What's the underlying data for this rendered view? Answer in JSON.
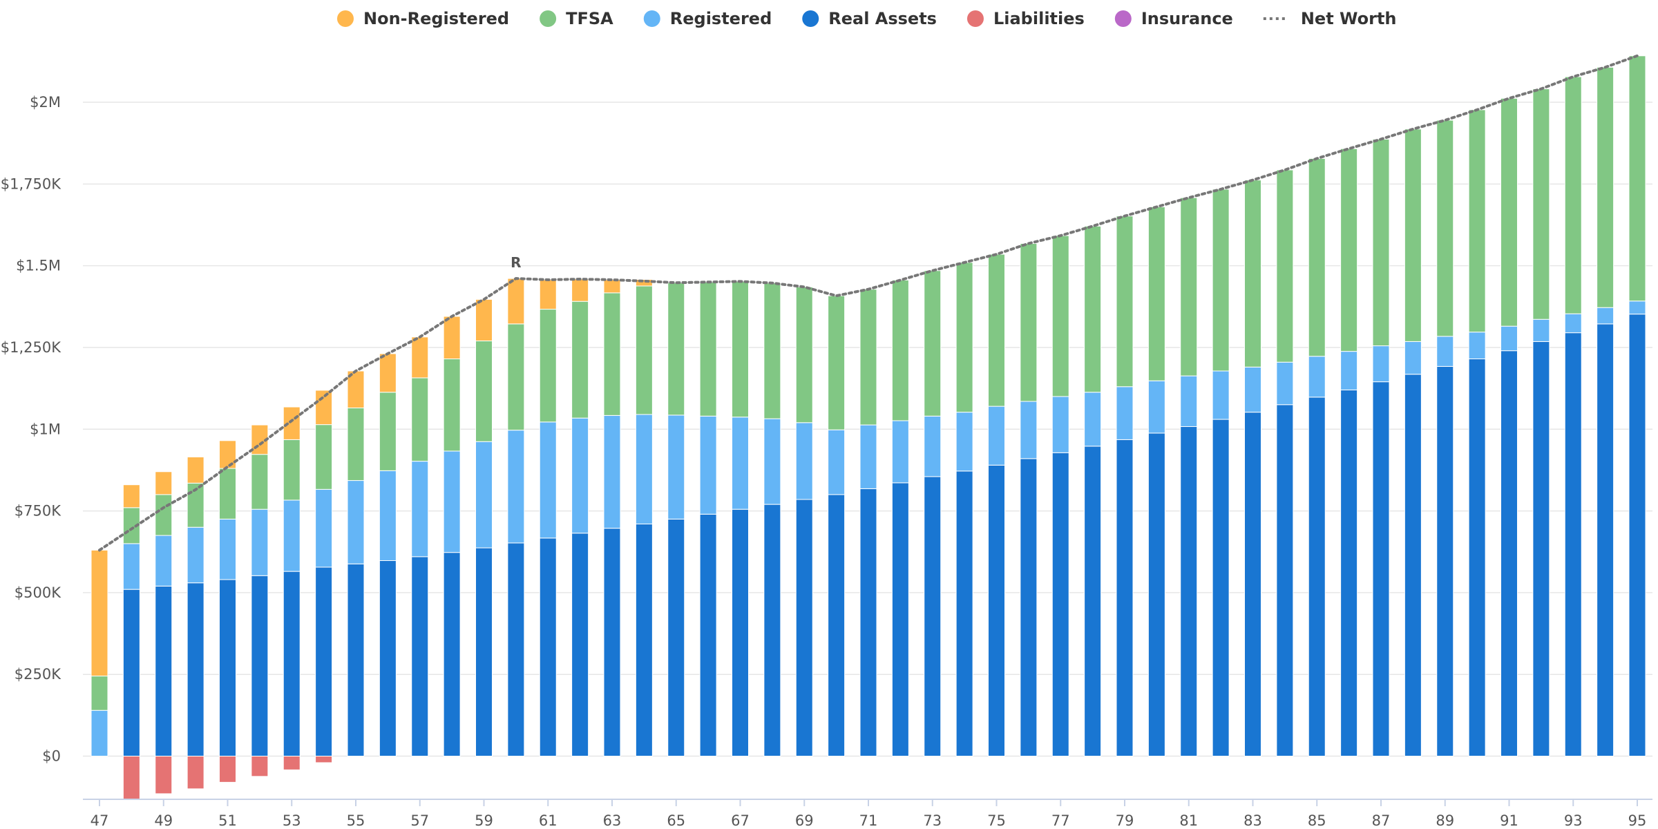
{
  "chart_data": {
    "type": "bar",
    "stacked": true,
    "title": "",
    "xlabel": "",
    "ylabel": "",
    "ylim": [
      -140000,
      2140000
    ],
    "grid": true,
    "legend_position": "top-center",
    "y_ticks": [
      {
        "value": 0,
        "label": "$0"
      },
      {
        "value": 250000,
        "label": "$250K"
      },
      {
        "value": 500000,
        "label": "$500K"
      },
      {
        "value": 750000,
        "label": "$750K"
      },
      {
        "value": 1000000,
        "label": "$1M"
      },
      {
        "value": 1250000,
        "label": "$1,250K"
      },
      {
        "value": 1500000,
        "label": "$1.5M"
      },
      {
        "value": 1750000,
        "label": "$1,750K"
      },
      {
        "value": 2000000,
        "label": "$2M"
      }
    ],
    "x_tick_labels": [
      "47",
      "49",
      "51",
      "53",
      "55",
      "57",
      "59",
      "61",
      "63",
      "65",
      "67",
      "69",
      "71",
      "73",
      "75",
      "77",
      "79",
      "81",
      "83",
      "85",
      "87",
      "89",
      "91",
      "93",
      "95"
    ],
    "categories": [
      "47",
      "48",
      "49",
      "50",
      "51",
      "52",
      "53",
      "54",
      "55",
      "56",
      "57",
      "58",
      "59",
      "60",
      "61",
      "62",
      "63",
      "64",
      "65",
      "66",
      "67",
      "68",
      "69",
      "70",
      "71",
      "72",
      "73",
      "74",
      "75",
      "76",
      "77",
      "78",
      "79",
      "80",
      "81",
      "82",
      "83",
      "84",
      "85",
      "86",
      "87",
      "88",
      "89",
      "90",
      "91",
      "92",
      "93",
      "94",
      "95"
    ],
    "series": [
      {
        "name": "Real Assets",
        "color": "#1976d2",
        "values": [
          0,
          510000,
          520000,
          530000,
          540000,
          552000,
          565000,
          578000,
          588000,
          598000,
          610000,
          623000,
          637000,
          652000,
          667000,
          682000,
          697000,
          710000,
          725000,
          740000,
          755000,
          770000,
          785000,
          800000,
          818000,
          836000,
          855000,
          872000,
          890000,
          910000,
          928000,
          948000,
          968000,
          988000,
          1008000,
          1030000,
          1052000,
          1075000,
          1098000,
          1120000,
          1145000,
          1168000,
          1192000,
          1215000,
          1240000,
          1268000,
          1295000,
          1322000,
          1352000
        ]
      },
      {
        "name": "Registered",
        "color": "#64b5f6",
        "values": [
          140000,
          140000,
          155000,
          170000,
          185000,
          203000,
          218000,
          238000,
          255000,
          275000,
          292000,
          310000,
          325000,
          345000,
          355000,
          352000,
          345000,
          335000,
          318000,
          300000,
          282000,
          262000,
          235000,
          198000,
          195000,
          190000,
          185000,
          180000,
          180000,
          175000,
          172000,
          165000,
          162000,
          160000,
          155000,
          148000,
          138000,
          130000,
          125000,
          118000,
          110000,
          100000,
          92000,
          82000,
          75000,
          68000,
          58000,
          50000,
          40000
        ]
      },
      {
        "name": "TFSA",
        "color": "#81c784",
        "values": [
          105000,
          110000,
          125000,
          135000,
          155000,
          168000,
          185000,
          198000,
          222000,
          240000,
          255000,
          282000,
          308000,
          325000,
          345000,
          357000,
          375000,
          393000,
          405000,
          410000,
          415000,
          415000,
          415000,
          410000,
          415000,
          430000,
          445000,
          458000,
          465000,
          483000,
          492000,
          508000,
          522000,
          532000,
          545000,
          556000,
          572000,
          588000,
          605000,
          620000,
          632000,
          650000,
          661000,
          680000,
          697000,
          705000,
          725000,
          735000,
          750000
        ]
      },
      {
        "name": "Non-Registered",
        "color": "#ffb74d",
        "values": [
          385000,
          70000,
          70000,
          80000,
          85000,
          90000,
          100000,
          105000,
          113000,
          118000,
          125000,
          130000,
          127000,
          139000,
          90000,
          68000,
          40000,
          20000,
          0,
          0,
          0,
          0,
          0,
          0,
          0,
          0,
          0,
          0,
          0,
          0,
          0,
          0,
          0,
          0,
          0,
          0,
          0,
          0,
          0,
          0,
          0,
          0,
          0,
          0,
          0,
          0,
          0,
          0,
          0
        ]
      },
      {
        "name": "Liabilities",
        "color": "#e57373",
        "values": [
          0,
          -135000,
          -115000,
          -100000,
          -80000,
          -62000,
          -42000,
          -20000,
          0,
          0,
          0,
          0,
          0,
          0,
          0,
          0,
          0,
          0,
          0,
          0,
          0,
          0,
          0,
          0,
          0,
          0,
          0,
          0,
          0,
          0,
          0,
          0,
          0,
          0,
          0,
          0,
          0,
          0,
          0,
          0,
          0,
          0,
          0,
          0,
          0,
          0,
          0,
          0,
          0
        ]
      },
      {
        "name": "Insurance",
        "color": "#ba68c8",
        "values": [
          0,
          0,
          0,
          0,
          0,
          0,
          0,
          0,
          0,
          0,
          0,
          0,
          0,
          0,
          0,
          0,
          0,
          0,
          0,
          0,
          0,
          0,
          0,
          0,
          0,
          0,
          0,
          0,
          0,
          0,
          0,
          0,
          0,
          0,
          0,
          0,
          0,
          0,
          0,
          0,
          0,
          0,
          0,
          0,
          0,
          0,
          0,
          0,
          0
        ]
      }
    ],
    "line_series": {
      "name": "Net Worth",
      "color": "#777777",
      "style": "dotted",
      "values": [
        630000,
        695000,
        760000,
        815000,
        885000,
        953000,
        1026000,
        1099000,
        1178000,
        1231000,
        1282000,
        1345000,
        1397000,
        1461000,
        1457000,
        1459000,
        1457000,
        1453000,
        1448000,
        1450000,
        1452000,
        1447000,
        1435000,
        1408000,
        1428000,
        1456000,
        1485000,
        1510000,
        1535000,
        1568000,
        1592000,
        1621000,
        1652000,
        1680000,
        1708000,
        1734000,
        1762000,
        1793000,
        1828000,
        1858000,
        1887000,
        1918000,
        1945000,
        1977000,
        2012000,
        2041000,
        2078000,
        2107000,
        2142000
      ]
    },
    "annotations": [
      {
        "text": "R",
        "x_category": "60",
        "anchor": "above-line"
      }
    ],
    "legend": [
      {
        "name": "Non-Registered",
        "color": "#ffb74d",
        "symbol": "circle"
      },
      {
        "name": "TFSA",
        "color": "#81c784",
        "symbol": "circle"
      },
      {
        "name": "Registered",
        "color": "#64b5f6",
        "symbol": "circle"
      },
      {
        "name": "Real Assets",
        "color": "#1976d2",
        "symbol": "circle"
      },
      {
        "name": "Liabilities",
        "color": "#e57373",
        "symbol": "circle"
      },
      {
        "name": "Insurance",
        "color": "#ba68c8",
        "symbol": "circle"
      },
      {
        "name": "Net Worth",
        "color": "#777777",
        "symbol": "dotted-line"
      }
    ]
  }
}
